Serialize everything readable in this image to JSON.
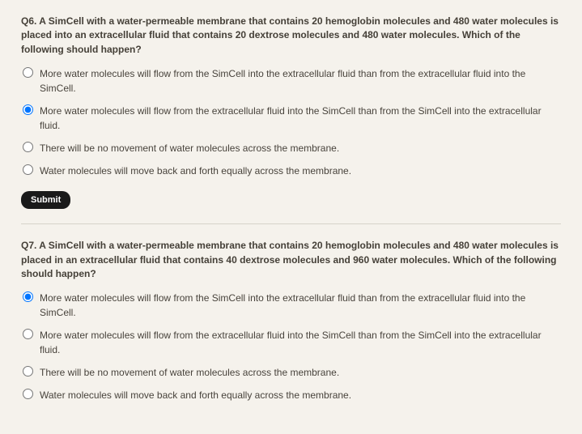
{
  "questions": [
    {
      "id": "q6",
      "prompt": "Q6. A SimCell with a water-permeable membrane that contains 20 hemoglobin molecules and 480 water molecules is placed into an extracellular fluid that contains 20 dextrose molecules and 480 water molecules. Which of the following should happen?",
      "options": [
        "More water molecules will flow from the SimCell into the extracellular fluid than from the extracellular fluid into the SimCell.",
        "More water molecules will flow from the extracellular fluid into the SimCell than from the SimCell into the extracellular fluid.",
        "There will be no movement of water molecules across the membrane.",
        "Water molecules will move back and forth equally across the membrane."
      ],
      "selected": 1,
      "submit_label": "Submit"
    },
    {
      "id": "q7",
      "prompt": "Q7. A SimCell with a water-permeable membrane that contains 20 hemoglobin molecules and 480 water molecules is placed in an extracellular fluid that contains 40 dextrose molecules and 960 water molecules. Which of the following should happen?",
      "options": [
        "More water molecules will flow from the SimCell into the extracellular fluid than from the extracellular fluid into the SimCell.",
        "More water molecules will flow from the extracellular fluid into the SimCell than from the SimCell into the extracellular fluid.",
        "There will be no movement of water molecules across the membrane.",
        "Water molecules will move back and forth equally across the membrane."
      ],
      "selected": 0
    }
  ]
}
